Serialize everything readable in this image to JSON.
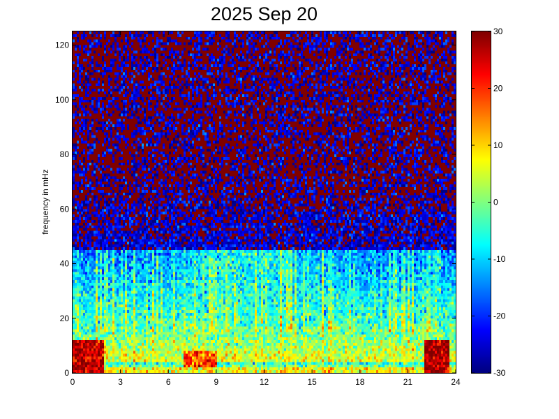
{
  "chart_data": {
    "type": "heatmap",
    "title": "2025 Sep 20",
    "xlabel": "",
    "ylabel": "frequency in mHz",
    "x_range": [
      0,
      24
    ],
    "y_range": [
      0,
      125
    ],
    "x_ticks": [
      0,
      3,
      6,
      9,
      12,
      15,
      18,
      21,
      24
    ],
    "y_ticks": [
      0,
      20,
      40,
      60,
      80,
      100,
      120
    ],
    "colormap": "jet",
    "color_range": [
      -30,
      30
    ],
    "colorbar_ticks": [
      30,
      20,
      10,
      0,
      -10,
      -20,
      -30
    ],
    "grid": false,
    "features": [
      {
        "x_range": [
          0.0,
          2.0
        ],
        "y_range": [
          0,
          12
        ],
        "value": 28
      },
      {
        "x_range": [
          22.0,
          23.6
        ],
        "y_range": [
          0,
          12
        ],
        "value": 30
      },
      {
        "x_range": [
          7.0,
          9.0
        ],
        "y_range": [
          2,
          8
        ],
        "value": 20
      },
      {
        "x_range": [
          8.0,
          13.5
        ],
        "y_range": [
          20,
          55
        ],
        "value": -5
      },
      {
        "x_range": [
          6.2,
          6.5
        ],
        "y_range": [
          40,
          68
        ],
        "value": -8
      },
      {
        "x_range": [
          22.6,
          23.1
        ],
        "y_range": [
          20,
          70
        ],
        "value": -5
      }
    ]
  },
  "colors": {
    "background": "#ffffff",
    "axis": "#000000"
  }
}
